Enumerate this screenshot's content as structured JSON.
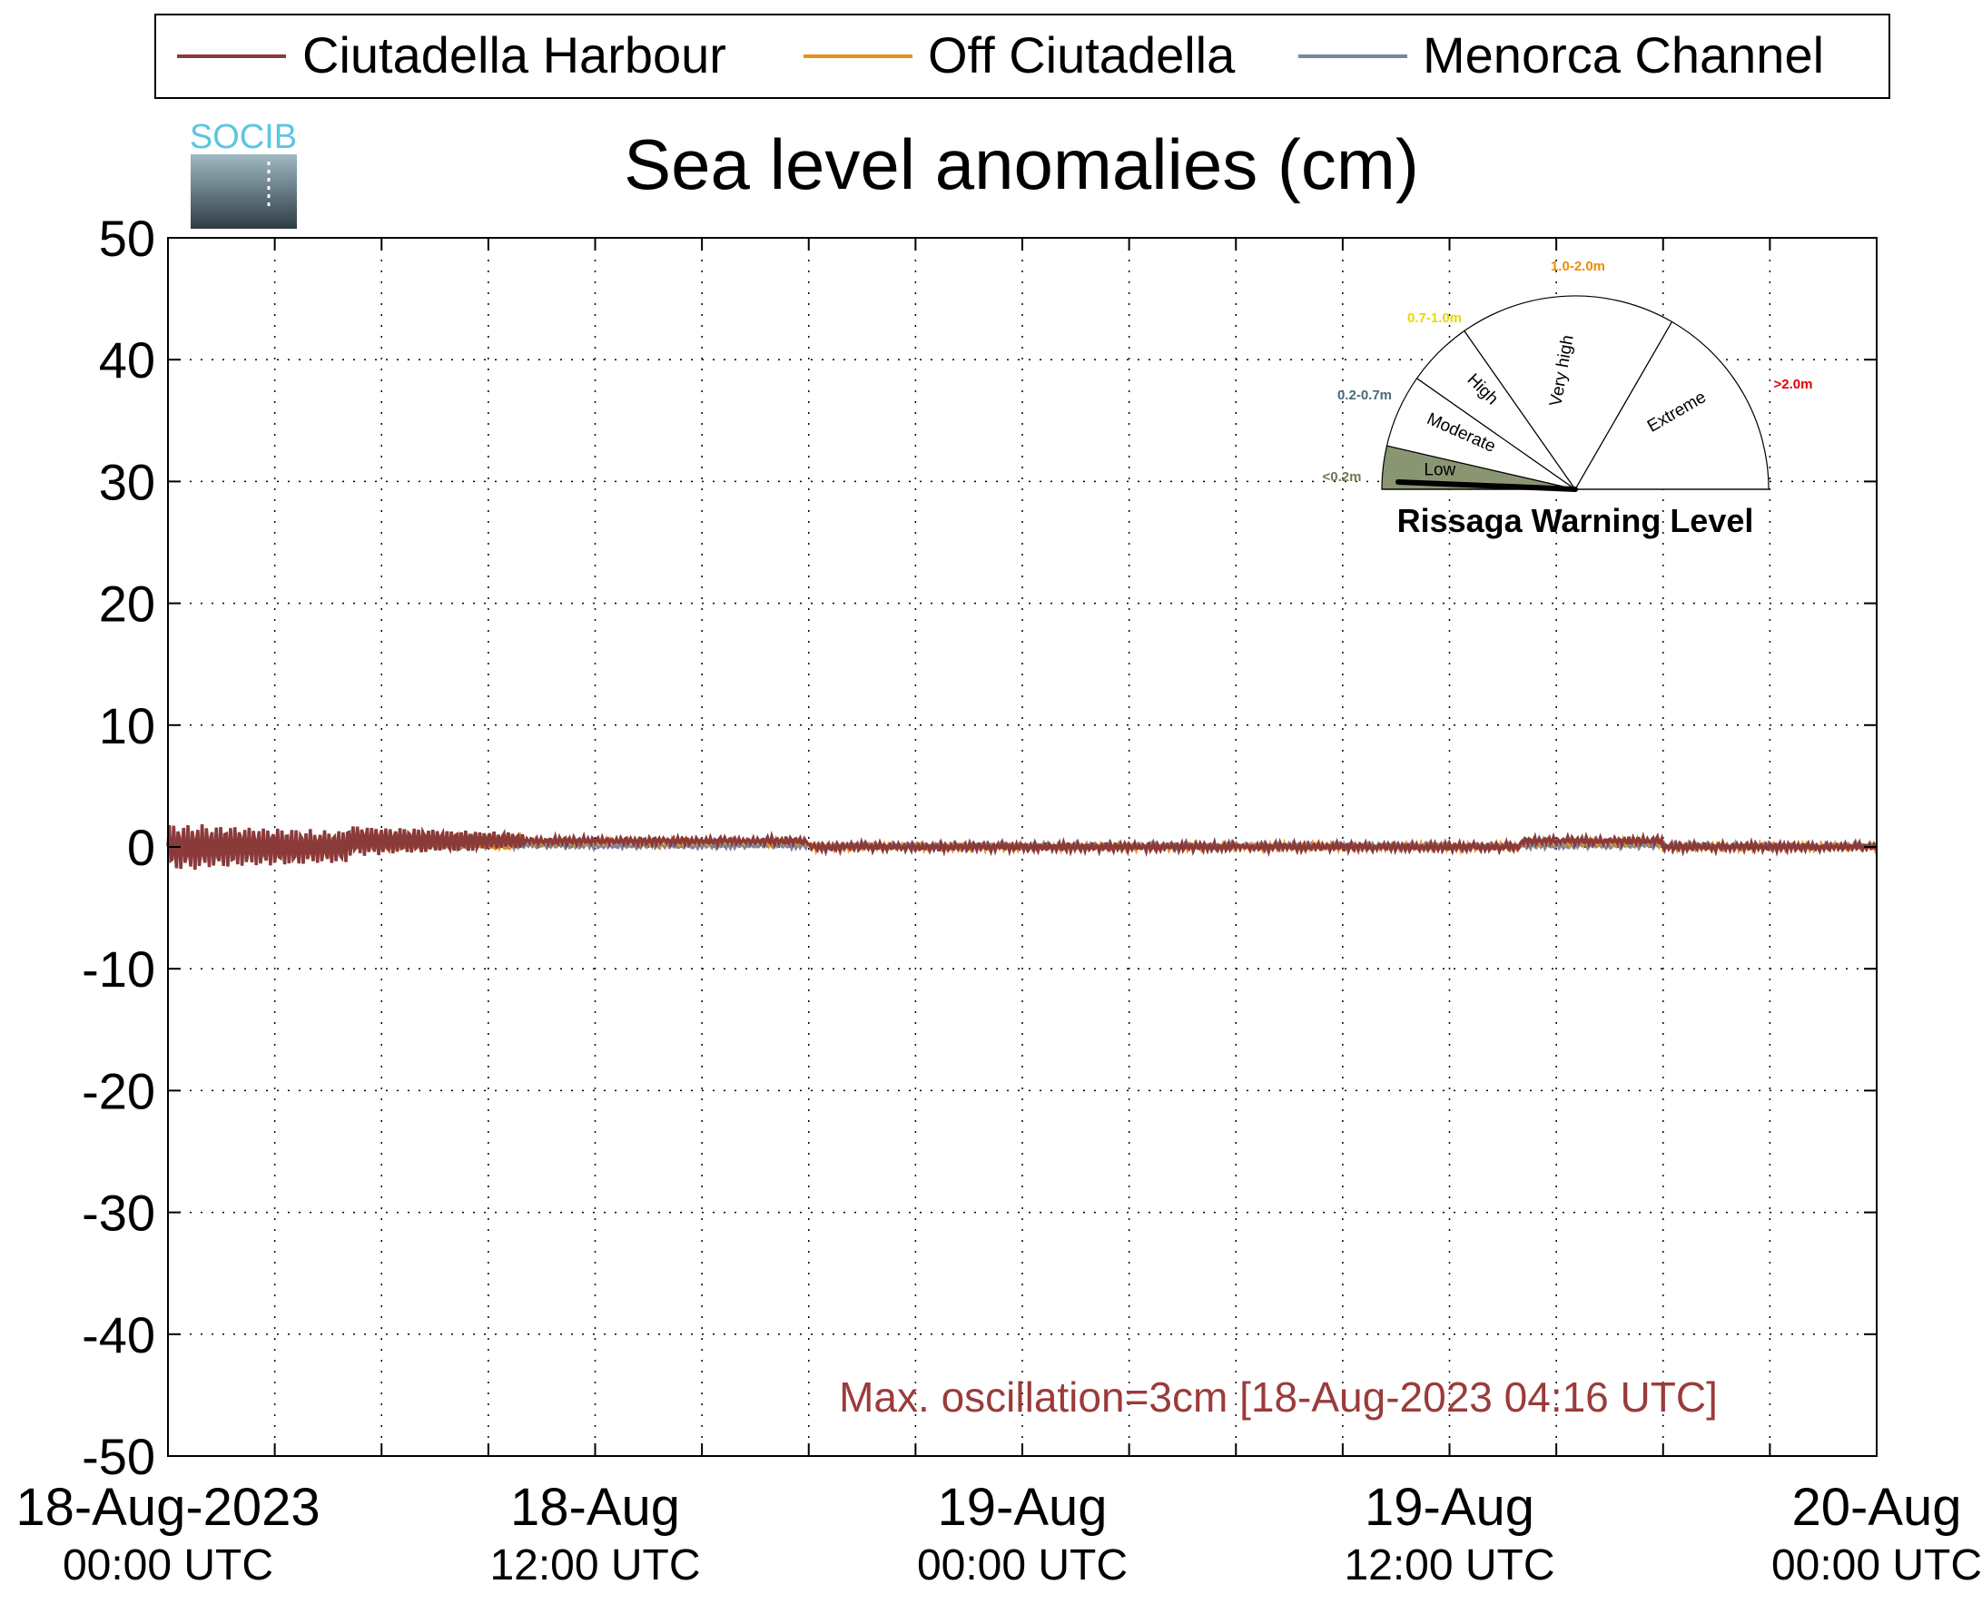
{
  "chart_data": {
    "type": "line",
    "title": "Sea level anomalies (cm)",
    "xlabel": "",
    "ylabel": "",
    "ylim": [
      -50,
      50
    ],
    "yticks": [
      50,
      40,
      30,
      20,
      10,
      0,
      -10,
      -20,
      -30,
      -40,
      -50
    ],
    "ytick_labels": [
      "50",
      "40",
      "30",
      "20",
      "10",
      "0",
      "-10",
      "-20",
      "-30",
      "-40",
      "-50"
    ],
    "xlim": [
      "2023-08-18 00:00",
      "2023-08-20 00:00"
    ],
    "xticks": [
      {
        "date": "18-Aug-2023",
        "time": "00:00 UTC",
        "value": "2023-08-18 00:00"
      },
      {
        "date": "18-Aug",
        "time": "12:00 UTC",
        "value": "2023-08-18 12:00"
      },
      {
        "date": "19-Aug",
        "time": "00:00 UTC",
        "value": "2023-08-19 00:00"
      },
      {
        "date": "19-Aug",
        "time": "12:00 UTC",
        "value": "2023-08-19 12:00"
      },
      {
        "date": "20-Aug",
        "time": "00:00 UTC",
        "value": "2023-08-20 00:00"
      }
    ],
    "minor_xticks_hours": [
      3,
      6,
      9,
      15,
      18,
      21,
      27,
      30,
      33,
      39,
      42,
      45
    ],
    "grid": true,
    "legend_position": "top",
    "series": [
      {
        "name": "Ciutadella Harbour",
        "color": "#8b3a3a"
      },
      {
        "name": "Off Ciutadella",
        "color": "#e8901c"
      },
      {
        "name": "Menorca Channel",
        "color": "#7a84a0"
      }
    ],
    "annotation": "Max. oscillation=3cm [18-Aug-2023 04:16 UTC]",
    "annotation_color": "#9b3b3b"
  },
  "logo": {
    "text": "SOCIB"
  },
  "gauge": {
    "title": "Rissaga Warning Level",
    "sectors": [
      {
        "label": "Low",
        "range": "<0.2m",
        "range_color": "#6b7a52",
        "fill": "#8a9672"
      },
      {
        "label": "Moderate",
        "range": "0.2-0.7m",
        "range_color": "#4a6a78",
        "fill": "#ffffff"
      },
      {
        "label": "High",
        "range": "0.7-1.0m",
        "range_color": "#e8d800",
        "fill": "#ffffff"
      },
      {
        "label": "Very high",
        "range": "1.0-2.0m",
        "range_color": "#f08a00",
        "fill": "#ffffff"
      },
      {
        "label": "Extreme",
        "range": ">2.0m",
        "range_color": "#e00000",
        "fill": "#ffffff"
      }
    ],
    "current_level": "Low"
  }
}
